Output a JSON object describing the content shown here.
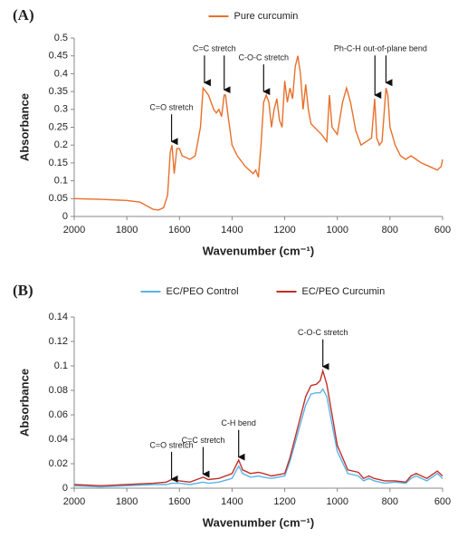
{
  "chart_data": [
    {
      "type": "line",
      "title": "(A)",
      "x_label": "Wavenumber (cm⁻¹)",
      "y_label": "Absorbance",
      "xlim": [
        2000,
        600
      ],
      "xticks": [
        2000,
        1800,
        1600,
        1400,
        1200,
        1000,
        800,
        600
      ],
      "ylim": [
        0,
        0.5
      ],
      "yticks": [
        0,
        0.05,
        0.1,
        0.15,
        0.2,
        0.25,
        0.3,
        0.35,
        0.4,
        0.45,
        0.5
      ],
      "x": [
        2000,
        1900,
        1800,
        1750,
        1700,
        1680,
        1660,
        1645,
        1635,
        1628,
        1620,
        1610,
        1600,
        1590,
        1560,
        1540,
        1520,
        1510,
        1500,
        1490,
        1470,
        1460,
        1450,
        1440,
        1430,
        1425,
        1415,
        1400,
        1380,
        1350,
        1320,
        1310,
        1300,
        1290,
        1280,
        1270,
        1260,
        1250,
        1240,
        1230,
        1220,
        1210,
        1200,
        1190,
        1180,
        1170,
        1160,
        1150,
        1140,
        1130,
        1120,
        1110,
        1100,
        1060,
        1040,
        1030,
        1020,
        1000,
        980,
        965,
        950,
        930,
        910,
        890,
        870,
        858,
        850,
        840,
        830,
        815,
        808,
        800,
        780,
        760,
        740,
        720,
        700,
        680,
        650,
        620,
        605,
        600
      ],
      "series": [
        {
          "name": "Pure curcumin",
          "color": "#e8702a",
          "values": [
            0.05,
            0.048,
            0.045,
            0.04,
            0.02,
            0.018,
            0.025,
            0.06,
            0.18,
            0.2,
            0.12,
            0.19,
            0.19,
            0.17,
            0.16,
            0.17,
            0.25,
            0.36,
            0.35,
            0.34,
            0.3,
            0.29,
            0.3,
            0.28,
            0.34,
            0.34,
            0.28,
            0.2,
            0.17,
            0.14,
            0.12,
            0.13,
            0.11,
            0.2,
            0.32,
            0.34,
            0.32,
            0.25,
            0.3,
            0.33,
            0.27,
            0.25,
            0.38,
            0.32,
            0.36,
            0.33,
            0.42,
            0.45,
            0.4,
            0.3,
            0.37,
            0.3,
            0.26,
            0.23,
            0.21,
            0.34,
            0.25,
            0.23,
            0.32,
            0.36,
            0.32,
            0.24,
            0.2,
            0.21,
            0.22,
            0.33,
            0.22,
            0.2,
            0.21,
            0.36,
            0.34,
            0.25,
            0.2,
            0.17,
            0.16,
            0.17,
            0.16,
            0.15,
            0.14,
            0.13,
            0.14,
            0.16
          ]
        }
      ],
      "annotations": [
        {
          "text": "C=O stretch",
          "x": [
            1630
          ],
          "y": [
            0.205
          ]
        },
        {
          "text": "C=C stretch",
          "x": [
            1505,
            1430
          ],
          "y": [
            0.37,
            0.35
          ]
        },
        {
          "text": "C-O-C stretch",
          "x": [
            1280
          ],
          "y": [
            0.345
          ]
        },
        {
          "text": "Ph-C-H out-of-plane bend",
          "x": [
            857,
            815
          ],
          "y": [
            0.335,
            0.37
          ]
        }
      ]
    },
    {
      "type": "line",
      "title": "(B)",
      "x_label": "Wavenumber (cm⁻¹)",
      "y_label": "Absorbance",
      "xlim": [
        2000,
        600
      ],
      "xticks": [
        2000,
        1800,
        1600,
        1400,
        1200,
        1000,
        800,
        600
      ],
      "ylim": [
        0,
        0.14
      ],
      "yticks": [
        0,
        0.02,
        0.04,
        0.06,
        0.08,
        0.1,
        0.12,
        0.14
      ],
      "x": [
        2000,
        1900,
        1800,
        1700,
        1650,
        1630,
        1600,
        1560,
        1510,
        1490,
        1450,
        1400,
        1375,
        1360,
        1330,
        1300,
        1280,
        1250,
        1200,
        1180,
        1150,
        1120,
        1100,
        1080,
        1065,
        1055,
        1040,
        1020,
        1000,
        960,
        920,
        900,
        880,
        860,
        820,
        780,
        740,
        720,
        700,
        660,
        620,
        600
      ],
      "series": [
        {
          "name": "EC/PEO Control",
          "color": "#5ab4e6",
          "values": [
            0.002,
            0.001,
            0.002,
            0.003,
            0.003,
            0.004,
            0.004,
            0.003,
            0.005,
            0.004,
            0.005,
            0.008,
            0.018,
            0.012,
            0.009,
            0.01,
            0.009,
            0.008,
            0.01,
            0.022,
            0.045,
            0.068,
            0.077,
            0.078,
            0.078,
            0.081,
            0.075,
            0.052,
            0.03,
            0.012,
            0.01,
            0.006,
            0.008,
            0.006,
            0.004,
            0.005,
            0.004,
            0.008,
            0.01,
            0.006,
            0.012,
            0.008
          ]
        },
        {
          "name": "EC/PEO Curcumin",
          "color": "#c0302a",
          "values": [
            0.003,
            0.002,
            0.003,
            0.004,
            0.005,
            0.007,
            0.006,
            0.005,
            0.009,
            0.007,
            0.008,
            0.012,
            0.023,
            0.015,
            0.012,
            0.013,
            0.012,
            0.01,
            0.012,
            0.025,
            0.05,
            0.075,
            0.084,
            0.085,
            0.088,
            0.096,
            0.085,
            0.06,
            0.035,
            0.015,
            0.013,
            0.008,
            0.01,
            0.008,
            0.006,
            0.006,
            0.005,
            0.01,
            0.012,
            0.008,
            0.014,
            0.01
          ]
        }
      ],
      "annotations": [
        {
          "text": "C=O stretch",
          "x": [
            1630
          ],
          "y": [
            0.006
          ]
        },
        {
          "text": "C=C stretch",
          "x": [
            1510
          ],
          "y": [
            0.01
          ]
        },
        {
          "text": "C-H bend",
          "x": [
            1375
          ],
          "y": [
            0.024
          ]
        },
        {
          "text": "C-O-C stretch",
          "x": [
            1055
          ],
          "y": [
            0.098
          ]
        }
      ]
    }
  ]
}
